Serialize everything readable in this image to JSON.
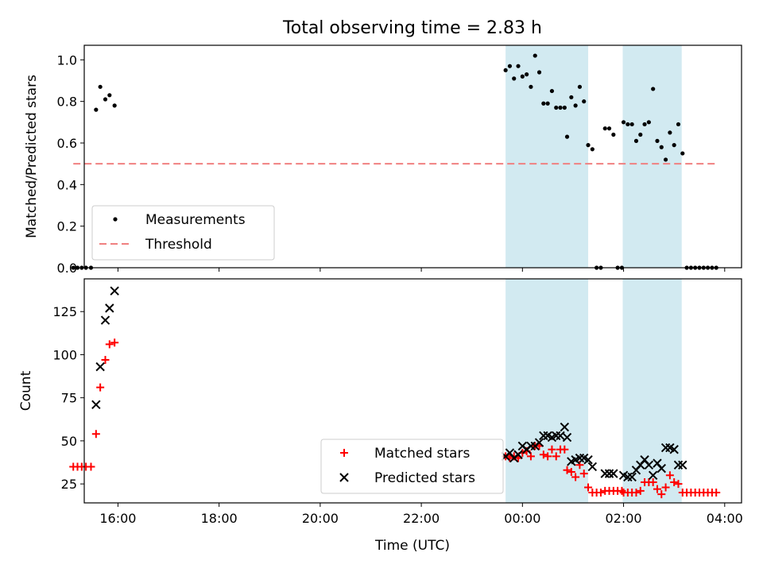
{
  "figure": {
    "title": "Total observing time = 2.83 h"
  },
  "chart_data": [
    {
      "type": "scatter",
      "panel": "top",
      "ylabel": "Matched/Predicted stars",
      "xlabel": "",
      "x_unit": "UTC time",
      "xlim": [
        "15:20",
        "04:20"
      ],
      "ylim": [
        0,
        1.07
      ],
      "y_ticks": [
        0.0,
        0.2,
        0.4,
        0.6,
        0.8,
        1.0
      ],
      "y_tick_labels": [
        "0.0",
        "0.2",
        "0.4",
        "0.6",
        "0.8",
        "1.0"
      ],
      "grid": false,
      "legend_position": "lower-left",
      "shaded_intervals": [
        [
          "23:40",
          "01:18"
        ],
        [
          "01:59",
          "03:09"
        ]
      ],
      "shade_color": "#add8e6",
      "series": [
        {
          "name": "Measurements",
          "marker": "dot",
          "color": "#000000",
          "points": [
            [
              "15:07",
              0.0
            ],
            [
              "15:12",
              0.0
            ],
            [
              "15:17",
              0.0
            ],
            [
              "15:22",
              0.0
            ],
            [
              "15:28",
              0.0
            ],
            [
              "15:34",
              0.76
            ],
            [
              "15:39",
              0.87
            ],
            [
              "15:45",
              0.81
            ],
            [
              "15:50",
              0.83
            ],
            [
              "15:56",
              0.78
            ],
            [
              "23:40",
              0.95
            ],
            [
              "23:45",
              0.97
            ],
            [
              "23:50",
              0.91
            ],
            [
              "23:55",
              0.97
            ],
            [
              "00:00",
              0.92
            ],
            [
              "00:05",
              0.93
            ],
            [
              "00:10",
              0.87
            ],
            [
              "00:15",
              1.02
            ],
            [
              "00:20",
              0.94
            ],
            [
              "00:25",
              0.79
            ],
            [
              "00:30",
              0.79
            ],
            [
              "00:35",
              0.85
            ],
            [
              "00:40",
              0.77
            ],
            [
              "00:45",
              0.77
            ],
            [
              "00:50",
              0.77
            ],
            [
              "00:53",
              0.63
            ],
            [
              "00:58",
              0.82
            ],
            [
              "01:03",
              0.78
            ],
            [
              "01:08",
              0.87
            ],
            [
              "01:13",
              0.8
            ],
            [
              "01:18",
              0.59
            ],
            [
              "01:23",
              0.57
            ],
            [
              "01:28",
              0.0
            ],
            [
              "01:33",
              0.0
            ],
            [
              "01:38",
              0.67
            ],
            [
              "01:43",
              0.67
            ],
            [
              "01:48",
              0.64
            ],
            [
              "01:53",
              0.0
            ],
            [
              "01:58",
              0.0
            ],
            [
              "02:00",
              0.7
            ],
            [
              "02:05",
              0.69
            ],
            [
              "02:10",
              0.69
            ],
            [
              "02:15",
              0.61
            ],
            [
              "02:20",
              0.64
            ],
            [
              "02:25",
              0.69
            ],
            [
              "02:30",
              0.7
            ],
            [
              "02:35",
              0.86
            ],
            [
              "02:40",
              0.61
            ],
            [
              "02:45",
              0.58
            ],
            [
              "02:50",
              0.52
            ],
            [
              "02:55",
              0.65
            ],
            [
              "03:00",
              0.59
            ],
            [
              "03:05",
              0.69
            ],
            [
              "03:10",
              0.55
            ],
            [
              "03:15",
              0.0
            ],
            [
              "03:20",
              0.0
            ],
            [
              "03:25",
              0.0
            ],
            [
              "03:30",
              0.0
            ],
            [
              "03:35",
              0.0
            ],
            [
              "03:40",
              0.0
            ],
            [
              "03:45",
              0.0
            ],
            [
              "03:50",
              0.0
            ]
          ]
        },
        {
          "name": "Threshold",
          "marker": "dashed-line",
          "color": "#f08080",
          "points": [
            [
              "15:07",
              0.5
            ],
            [
              "03:50",
              0.5
            ]
          ]
        }
      ]
    },
    {
      "type": "scatter",
      "panel": "bottom",
      "ylabel": "Count",
      "xlabel": "Time (UTC)",
      "xlim": [
        "15:20",
        "04:20"
      ],
      "ylim": [
        14,
        144
      ],
      "y_ticks": [
        25,
        50,
        75,
        100,
        125
      ],
      "y_tick_labels": [
        "25",
        "50",
        "75",
        "100",
        "125"
      ],
      "x_ticks": [
        "16:00",
        "18:00",
        "20:00",
        "22:00",
        "00:00",
        "02:00",
        "04:00"
      ],
      "x_tick_labels": [
        "16:00",
        "18:00",
        "20:00",
        "22:00",
        "00:00",
        "02:00",
        "04:00"
      ],
      "grid": false,
      "legend_position": "lower-center",
      "shaded_intervals": [
        [
          "23:40",
          "01:18"
        ],
        [
          "01:59",
          "03:09"
        ]
      ],
      "shade_color": "#add8e6",
      "series": [
        {
          "name": "Matched stars",
          "marker": "plus",
          "color": "#ff0000",
          "points": [
            [
              "15:07",
              35
            ],
            [
              "15:12",
              35
            ],
            [
              "15:17",
              35
            ],
            [
              "15:22",
              35
            ],
            [
              "15:28",
              35
            ],
            [
              "15:34",
              54
            ],
            [
              "15:39",
              81
            ],
            [
              "15:45",
              97
            ],
            [
              "15:50",
              106
            ],
            [
              "15:56",
              107
            ],
            [
              "23:40",
              41
            ],
            [
              "23:45",
              40
            ],
            [
              "23:50",
              41
            ],
            [
              "23:55",
              40
            ],
            [
              "00:00",
              43
            ],
            [
              "00:05",
              44
            ],
            [
              "00:10",
              41
            ],
            [
              "00:15",
              47
            ],
            [
              "00:20",
              47
            ],
            [
              "00:25",
              42
            ],
            [
              "00:30",
              41
            ],
            [
              "00:35",
              45
            ],
            [
              "00:40",
              41
            ],
            [
              "00:45",
              45
            ],
            [
              "00:50",
              45
            ],
            [
              "00:53",
              33
            ],
            [
              "00:58",
              32
            ],
            [
              "01:03",
              29
            ],
            [
              "01:08",
              36
            ],
            [
              "01:13",
              31
            ],
            [
              "01:18",
              23
            ],
            [
              "01:23",
              20
            ],
            [
              "01:28",
              20
            ],
            [
              "01:33",
              20
            ],
            [
              "01:38",
              21
            ],
            [
              "01:43",
              21
            ],
            [
              "01:48",
              21
            ],
            [
              "01:53",
              21
            ],
            [
              "01:58",
              21
            ],
            [
              "02:00",
              20
            ],
            [
              "02:05",
              20
            ],
            [
              "02:10",
              20
            ],
            [
              "02:15",
              20
            ],
            [
              "02:20",
              21
            ],
            [
              "02:25",
              26
            ],
            [
              "02:30",
              26
            ],
            [
              "02:35",
              26
            ],
            [
              "02:40",
              22
            ],
            [
              "02:45",
              19
            ],
            [
              "02:50",
              23
            ],
            [
              "02:55",
              30
            ],
            [
              "03:00",
              26
            ],
            [
              "03:05",
              25
            ],
            [
              "03:10",
              20
            ],
            [
              "03:15",
              20
            ],
            [
              "03:20",
              20
            ],
            [
              "03:25",
              20
            ],
            [
              "03:30",
              20
            ],
            [
              "03:35",
              20
            ],
            [
              "03:40",
              20
            ],
            [
              "03:45",
              20
            ],
            [
              "03:50",
              20
            ]
          ]
        },
        {
          "name": "Predicted stars",
          "marker": "x",
          "color": "#000000",
          "points": [
            [
              "15:34",
              71
            ],
            [
              "15:39",
              93
            ],
            [
              "15:45",
              120
            ],
            [
              "15:50",
              127
            ],
            [
              "15:56",
              137
            ],
            [
              "23:40",
              41
            ],
            [
              "23:45",
              43
            ],
            [
              "23:50",
              40
            ],
            [
              "23:55",
              42
            ],
            [
              "00:00",
              47
            ],
            [
              "00:05",
              45
            ],
            [
              "00:10",
              47
            ],
            [
              "00:15",
              47
            ],
            [
              "00:20",
              49
            ],
            [
              "00:25",
              53
            ],
            [
              "00:30",
              53
            ],
            [
              "00:35",
              52
            ],
            [
              "00:40",
              53
            ],
            [
              "00:45",
              53
            ],
            [
              "00:50",
              58
            ],
            [
              "00:53",
              52
            ],
            [
              "00:58",
              38
            ],
            [
              "01:03",
              39
            ],
            [
              "01:08",
              40
            ],
            [
              "01:13",
              40
            ],
            [
              "01:18",
              39
            ],
            [
              "01:23",
              35
            ],
            [
              "01:38",
              31
            ],
            [
              "01:43",
              31
            ],
            [
              "01:48",
              31
            ],
            [
              "02:00",
              30
            ],
            [
              "02:05",
              29
            ],
            [
              "02:10",
              29
            ],
            [
              "02:15",
              33
            ],
            [
              "02:20",
              36
            ],
            [
              "02:25",
              39
            ],
            [
              "02:30",
              36
            ],
            [
              "02:35",
              30
            ],
            [
              "02:40",
              37
            ],
            [
              "02:45",
              34
            ],
            [
              "02:50",
              46
            ],
            [
              "02:55",
              46
            ],
            [
              "03:00",
              45
            ],
            [
              "03:05",
              36
            ],
            [
              "03:10",
              36
            ]
          ]
        }
      ]
    }
  ]
}
